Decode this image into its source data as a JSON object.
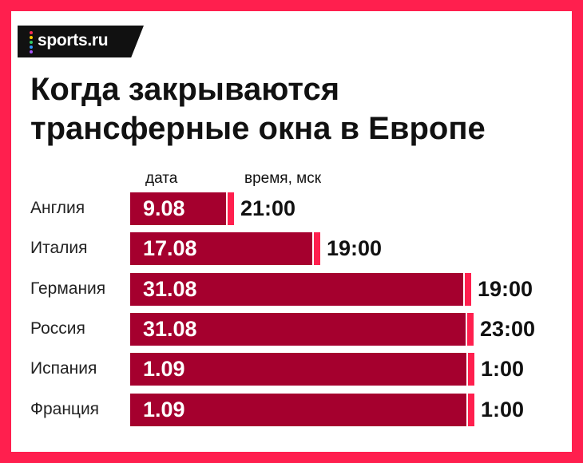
{
  "brand": {
    "name": "sports.ru",
    "dot_colors": [
      "#ff2d55",
      "#ffcc00",
      "#33cc66",
      "#3399ff",
      "#aa55ff"
    ]
  },
  "title_lines": [
    "Когда закрываются",
    "трансферные окна в Европе"
  ],
  "colors": {
    "frame": "#ff1f4e",
    "bar": "#a5002e",
    "marker": "#ff1f4e"
  },
  "chart_data": {
    "type": "bar",
    "orientation": "horizontal",
    "column_headers": {
      "date": "дата",
      "time": "время, мск"
    },
    "categories": [
      "Англия",
      "Италия",
      "Германия",
      "Россия",
      "Испания",
      "Франция"
    ],
    "dates": [
      "9.08",
      "17.08",
      "31.08",
      "31.08",
      "1.09",
      "1.09"
    ],
    "times": [
      "21:00",
      "19:00",
      "19:00",
      "23:00",
      "1:00",
      "1:00"
    ],
    "series": [
      {
        "values": [
          9.875,
          17.792,
          31.792,
          31.958,
          32.042,
          32.042
        ]
      }
    ],
    "xlim": [
      1,
      32.2
    ]
  }
}
